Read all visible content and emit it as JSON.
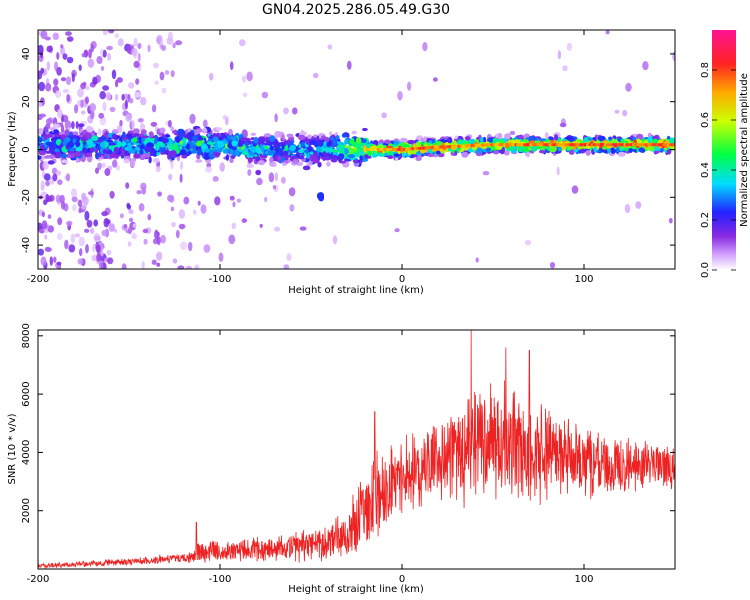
{
  "title": "GN04.2025.286.05.49.G30",
  "colors": {
    "snr_line": "#ee2222",
    "background": "#ffffff",
    "axis": "#000000"
  },
  "colorbar": {
    "label": "Normalized spectral amplitude",
    "ticks": [
      "0.0",
      "0.2",
      "0.4",
      "0.6",
      "0.8"
    ],
    "tick_values": [
      0.0,
      0.2,
      0.4,
      0.6,
      0.8
    ],
    "range": [
      0,
      0.96
    ]
  },
  "chart_data": [
    {
      "type": "heatmap",
      "name": "spectrogram",
      "xlabel": "Height of straight line (km)",
      "ylabel": "Frequency (Hz)",
      "xlim": [
        -200,
        150
      ],
      "ylim": [
        -50,
        50
      ],
      "xticks": [
        -200,
        -100,
        0,
        100
      ],
      "xtick_labels": [
        "-200",
        "-100",
        "0",
        "100"
      ],
      "yticks": [
        -40,
        -20,
        0,
        20,
        40
      ],
      "ytick_labels": [
        "-40",
        "-20",
        "0",
        "20",
        "40"
      ],
      "ridge": {
        "description": "dominant frequency band",
        "x": [
          -200,
          -150,
          -120,
          -100,
          -80,
          -60,
          -40,
          -20,
          0,
          20,
          50,
          100,
          150
        ],
        "freq": [
          2,
          2,
          2,
          2,
          0,
          0,
          0,
          0,
          0,
          1,
          2,
          2,
          2
        ],
        "amplitude": [
          0.3,
          0.35,
          0.4,
          0.4,
          0.35,
          0.3,
          0.35,
          0.7,
          0.85,
          0.8,
          0.8,
          0.85,
          0.85
        ]
      },
      "features": [
        {
          "x": -45,
          "freq": -20,
          "amplitude": 0.25,
          "note": "isolated blob"
        }
      ]
    },
    {
      "type": "line",
      "name": "snr",
      "xlabel": "Height of straight line (km)",
      "ylabel": "SNR (10 * v/v)",
      "xlim": [
        -200,
        150
      ],
      "ylim": [
        0,
        8200
      ],
      "xticks": [
        -200,
        -100,
        0,
        100
      ],
      "xtick_labels": [
        "-200",
        "-100",
        "0",
        "100"
      ],
      "yticks": [
        2000,
        4000,
        6000,
        8000
      ],
      "ytick_labels": [
        "2000",
        "4000",
        "6000",
        "8000"
      ],
      "envelope": {
        "x": [
          -200,
          -150,
          -115,
          -112,
          -100,
          -70,
          -40,
          -25,
          -15,
          0,
          20,
          38,
          45,
          60,
          75,
          90,
          110,
          130,
          150
        ],
        "mean": [
          100,
          250,
          400,
          600,
          600,
          700,
          900,
          1500,
          2500,
          3200,
          3600,
          4200,
          4500,
          4300,
          4000,
          3800,
          3600,
          3600,
          3500
        ],
        "amplitude": [
          100,
          150,
          200,
          500,
          400,
          500,
          700,
          1300,
          1800,
          1600,
          1400,
          2200,
          2400,
          2300,
          2000,
          1600,
          1300,
          1000,
          800
        ]
      },
      "peaks": [
        {
          "x": -113,
          "y": 1600
        },
        {
          "x": -15,
          "y": 5400
        },
        {
          "x": 38,
          "y": 8200
        },
        {
          "x": 57,
          "y": 7600
        },
        {
          "x": 70,
          "y": 7500
        }
      ]
    }
  ]
}
